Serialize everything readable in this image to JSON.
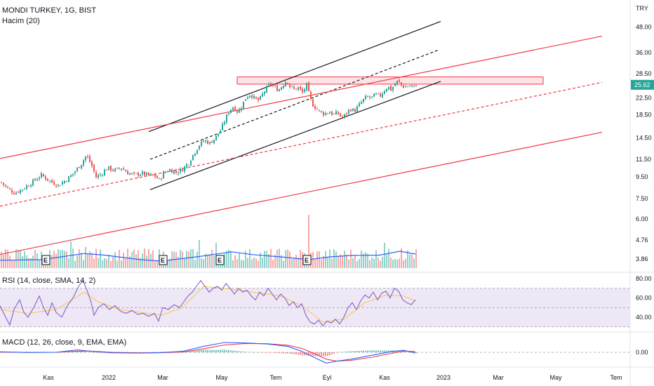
{
  "header": {
    "symbol_line": "MONDI TURKEY, 1G, BIST",
    "volume_line": "Hacim (20)",
    "rsi_line": "RSI (14, close, SMA, 14, 2)",
    "macd_line": "MACD (12, 26, close, 9, EMA, EMA)",
    "currency": "TRY"
  },
  "colors": {
    "up": "#26a69a",
    "down": "#ef5350",
    "trend_black": "#131722",
    "trend_red": "#f23645",
    "volume_ma": "#2962ff",
    "rsi_line": "#7e57c2",
    "rsi_ma": "#f7c94a",
    "rsi_band": "#ede7f6",
    "macd_line": "#2962ff",
    "signal_line": "#f23645",
    "price_tag": "#26a69a"
  },
  "chart_data": [
    {
      "type": "candlestick",
      "name": "price",
      "scale": "log",
      "y_ticks": [
        "48.00",
        "36.00",
        "28.50",
        "22.50",
        "18.50",
        "14.50",
        "11.50",
        "9.50",
        "7.50",
        "6.00",
        "4.76",
        "3.86"
      ],
      "ylim": [
        3.6,
        60
      ],
      "x_ticks": [
        "Kas",
        "2022",
        "Mar",
        "May",
        "Tem",
        "Eyl",
        "Kas",
        "2023",
        "Mar",
        "May",
        "Tem"
      ],
      "last_price": "25.62",
      "close_path": [
        [
          0,
          8.9
        ],
        [
          10,
          8.3
        ],
        [
          20,
          7.9
        ],
        [
          32,
          8.3
        ],
        [
          45,
          8.9
        ],
        [
          58,
          9.6
        ],
        [
          70,
          9.0
        ],
        [
          82,
          8.6
        ],
        [
          95,
          9.2
        ],
        [
          105,
          9.9
        ],
        [
          115,
          10.9
        ],
        [
          122,
          11.9
        ],
        [
          130,
          10.6
        ],
        [
          136,
          9.4
        ],
        [
          143,
          9.7
        ],
        [
          152,
          10.4
        ],
        [
          162,
          10.1
        ],
        [
          172,
          10.4
        ],
        [
          180,
          9.9
        ],
        [
          190,
          9.6
        ],
        [
          200,
          9.8
        ],
        [
          210,
          9.6
        ],
        [
          220,
          9.5
        ],
        [
          226,
          9.1
        ],
        [
          232,
          9.8
        ],
        [
          240,
          10.2
        ],
        [
          250,
          9.9
        ],
        [
          260,
          10.3
        ],
        [
          268,
          11.0
        ],
        [
          275,
          12.1
        ],
        [
          282,
          13.2
        ],
        [
          290,
          14.0
        ],
        [
          298,
          13.6
        ],
        [
          306,
          14.4
        ],
        [
          314,
          15.8
        ],
        [
          320,
          17.5
        ],
        [
          326,
          19.5
        ],
        [
          332,
          20.2
        ],
        [
          338,
          19.0
        ],
        [
          344,
          20.5
        ],
        [
          350,
          22.5
        ],
        [
          356,
          23.2
        ],
        [
          362,
          22.0
        ],
        [
          368,
          21.5
        ],
        [
          372,
          22.8
        ],
        [
          378,
          24.5
        ],
        [
          384,
          26.0
        ],
        [
          390,
          25.0
        ],
        [
          396,
          24.2
        ],
        [
          402,
          25.6
        ],
        [
          408,
          27.0
        ],
        [
          412,
          25.2
        ],
        [
          418,
          24.4
        ],
        [
          424,
          24.8
        ],
        [
          430,
          23.5
        ],
        [
          436,
          25.5
        ],
        [
          440,
          22.6
        ],
        [
          444,
          20.8
        ],
        [
          450,
          19.8
        ],
        [
          456,
          19.0
        ],
        [
          462,
          18.7
        ],
        [
          468,
          19.2
        ],
        [
          474,
          18.5
        ],
        [
          480,
          18.9
        ],
        [
          486,
          17.9
        ],
        [
          492,
          18.6
        ],
        [
          498,
          19.8
        ],
        [
          504,
          19.2
        ],
        [
          510,
          20.4
        ],
        [
          516,
          21.6
        ],
        [
          522,
          22.5
        ],
        [
          528,
          22.2
        ],
        [
          534,
          23.0
        ],
        [
          540,
          22.6
        ],
        [
          546,
          24.0
        ],
        [
          552,
          25.2
        ],
        [
          556,
          24.3
        ],
        [
          562,
          25.8
        ],
        [
          566,
          26.8
        ],
        [
          570,
          25.6
        ],
        [
          576,
          25.0
        ],
        [
          582,
          25.4
        ],
        [
          588,
          24.9
        ],
        [
          592,
          25.62
        ]
      ],
      "trendlines": [
        {
          "style": "black-solid",
          "points": [
            [
              212,
              15.4
            ],
            [
              628,
              51.0
            ]
          ]
        },
        {
          "style": "black-solid",
          "points": [
            [
              214,
              8.2
            ],
            [
              628,
              26.6
            ]
          ]
        },
        {
          "style": "black-dashed",
          "points": [
            [
              214,
              11.4
            ],
            [
              626,
              37.5
            ]
          ]
        },
        {
          "style": "red-solid",
          "points": [
            [
              0,
              11.5
            ],
            [
              858,
              43.5
            ]
          ]
        },
        {
          "style": "red-solid",
          "points": [
            [
              0,
              4.05
            ],
            [
              858,
              15.3
            ]
          ]
        },
        {
          "style": "red-dashed",
          "points": [
            [
              0,
              6.85
            ],
            [
              858,
              26.3
            ]
          ]
        }
      ],
      "resistance_zone": {
        "x": [
          338,
          774
        ],
        "y": [
          25.8,
          27.9
        ]
      }
    },
    {
      "type": "bar",
      "name": "volume",
      "ma_path": [
        [
          0,
          0.28
        ],
        [
          60,
          0.3
        ],
        [
          120,
          0.52
        ],
        [
          150,
          0.46
        ],
        [
          200,
          0.3
        ],
        [
          230,
          0.25
        ],
        [
          280,
          0.4
        ],
        [
          300,
          0.47
        ],
        [
          330,
          0.58
        ],
        [
          360,
          0.48
        ],
        [
          400,
          0.4
        ],
        [
          440,
          0.3
        ],
        [
          470,
          0.4
        ],
        [
          500,
          0.45
        ],
        [
          540,
          0.46
        ],
        [
          570,
          0.6
        ],
        [
          592,
          0.5
        ]
      ],
      "spikes": [
        [
          100,
          0.95
        ],
        [
          120,
          0.75
        ],
        [
          282,
          1.0
        ],
        [
          306,
          0.9
        ],
        [
          440,
          1.9
        ],
        [
          548,
          0.9
        ],
        [
          570,
          0.7
        ]
      ],
      "earnings_markers": [
        {
          "x": 65,
          "label": "E"
        },
        {
          "x": 232,
          "label": "E"
        },
        {
          "x": 313,
          "label": "E"
        },
        {
          "x": 437,
          "label": "E"
        }
      ]
    },
    {
      "type": "line",
      "name": "RSI",
      "y_ticks": [
        "80.00",
        "60.00",
        "40.00"
      ],
      "ylim": [
        25,
        85
      ],
      "band": [
        30,
        70
      ],
      "rsi_path": [
        [
          0,
          52
        ],
        [
          8,
          40
        ],
        [
          14,
          32
        ],
        [
          20,
          48
        ],
        [
          28,
          58
        ],
        [
          34,
          45
        ],
        [
          40,
          40
        ],
        [
          48,
          50
        ],
        [
          56,
          62
        ],
        [
          62,
          50
        ],
        [
          68,
          42
        ],
        [
          74,
          55
        ],
        [
          80,
          45
        ],
        [
          88,
          40
        ],
        [
          96,
          52
        ],
        [
          104,
          60
        ],
        [
          112,
          72
        ],
        [
          118,
          78
        ],
        [
          124,
          68
        ],
        [
          130,
          55
        ],
        [
          134,
          42
        ],
        [
          140,
          50
        ],
        [
          148,
          54
        ],
        [
          156,
          48
        ],
        [
          164,
          52
        ],
        [
          172,
          46
        ],
        [
          180,
          44
        ],
        [
          188,
          47
        ],
        [
          196,
          43
        ],
        [
          204,
          44
        ],
        [
          212,
          41
        ],
        [
          220,
          44
        ],
        [
          226,
          36
        ],
        [
          232,
          50
        ],
        [
          240,
          48
        ],
        [
          248,
          53
        ],
        [
          256,
          50
        ],
        [
          262,
          56
        ],
        [
          268,
          62
        ],
        [
          274,
          66
        ],
        [
          280,
          72
        ],
        [
          286,
          78
        ],
        [
          292,
          72
        ],
        [
          298,
          66
        ],
        [
          304,
          70
        ],
        [
          310,
          72
        ],
        [
          316,
          68
        ],
        [
          322,
          75
        ],
        [
          328,
          70
        ],
        [
          334,
          64
        ],
        [
          340,
          70
        ],
        [
          346,
          66
        ],
        [
          352,
          68
        ],
        [
          358,
          62
        ],
        [
          364,
          58
        ],
        [
          370,
          66
        ],
        [
          376,
          62
        ],
        [
          382,
          70
        ],
        [
          388,
          64
        ],
        [
          394,
          58
        ],
        [
          400,
          64
        ],
        [
          406,
          60
        ],
        [
          412,
          52
        ],
        [
          418,
          56
        ],
        [
          424,
          50
        ],
        [
          430,
          54
        ],
        [
          436,
          42
        ],
        [
          442,
          35
        ],
        [
          448,
          33
        ],
        [
          454,
          37
        ],
        [
          460,
          31
        ],
        [
          466,
          36
        ],
        [
          472,
          34
        ],
        [
          478,
          38
        ],
        [
          484,
          33
        ],
        [
          490,
          40
        ],
        [
          496,
          50
        ],
        [
          502,
          55
        ],
        [
          508,
          48
        ],
        [
          514,
          57
        ],
        [
          520,
          63
        ],
        [
          526,
          60
        ],
        [
          532,
          66
        ],
        [
          538,
          58
        ],
        [
          544,
          65
        ],
        [
          550,
          67
        ],
        [
          556,
          60
        ],
        [
          562,
          70
        ],
        [
          568,
          67
        ],
        [
          574,
          58
        ],
        [
          580,
          55
        ],
        [
          586,
          53
        ],
        [
          592,
          58
        ]
      ],
      "ma_path": [
        [
          0,
          48
        ],
        [
          40,
          44
        ],
        [
          80,
          48
        ],
        [
          120,
          66
        ],
        [
          140,
          56
        ],
        [
          170,
          48
        ],
        [
          200,
          45
        ],
        [
          230,
          42
        ],
        [
          260,
          50
        ],
        [
          290,
          72
        ],
        [
          320,
          70
        ],
        [
          360,
          66
        ],
        [
          400,
          62
        ],
        [
          430,
          52
        ],
        [
          460,
          35
        ],
        [
          490,
          38
        ],
        [
          520,
          55
        ],
        [
          550,
          63
        ],
        [
          575,
          62
        ],
        [
          592,
          57
        ]
      ]
    },
    {
      "type": "line",
      "name": "MACD",
      "y_ticks": [
        "0.00"
      ],
      "ylim": [
        -1.8,
        1.4
      ],
      "macd_path": [
        [
          0,
          0.05
        ],
        [
          40,
          -0.02
        ],
        [
          80,
          0.0
        ],
        [
          110,
          0.25
        ],
        [
          130,
          0.1
        ],
        [
          160,
          -0.05
        ],
        [
          200,
          -0.08
        ],
        [
          230,
          -0.02
        ],
        [
          260,
          0.1
        ],
        [
          290,
          0.6
        ],
        [
          320,
          1.0
        ],
        [
          350,
          0.95
        ],
        [
          380,
          0.85
        ],
        [
          410,
          0.6
        ],
        [
          430,
          0.1
        ],
        [
          450,
          -0.6
        ],
        [
          465,
          -1.1
        ],
        [
          480,
          -0.9
        ],
        [
          500,
          -0.7
        ],
        [
          530,
          -0.3
        ],
        [
          560,
          0.1
        ],
        [
          575,
          0.2
        ],
        [
          592,
          -0.05
        ]
      ],
      "signal_path": [
        [
          0,
          0.02
        ],
        [
          40,
          0.0
        ],
        [
          80,
          0.0
        ],
        [
          110,
          0.12
        ],
        [
          130,
          0.12
        ],
        [
          160,
          0.0
        ],
        [
          200,
          -0.06
        ],
        [
          230,
          -0.04
        ],
        [
          260,
          0.03
        ],
        [
          290,
          0.35
        ],
        [
          320,
          0.75
        ],
        [
          350,
          0.9
        ],
        [
          380,
          0.88
        ],
        [
          410,
          0.72
        ],
        [
          430,
          0.4
        ],
        [
          450,
          -0.2
        ],
        [
          465,
          -0.7
        ],
        [
          480,
          -0.9
        ],
        [
          500,
          -0.82
        ],
        [
          530,
          -0.5
        ],
        [
          560,
          -0.08
        ],
        [
          575,
          0.12
        ],
        [
          592,
          0.08
        ]
      ]
    }
  ]
}
